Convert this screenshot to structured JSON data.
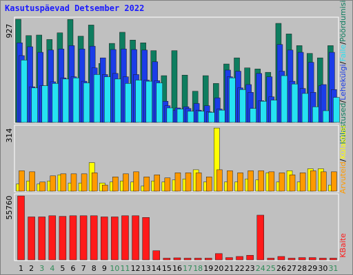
{
  "title": "Kasutuspäevad Detsember 2022",
  "colors": {
    "background": "#c0c0c0",
    "panel_border": "#ffffff",
    "visits": "#0e7d5f",
    "pages": "#1b3de8",
    "hits": "#26e2f2",
    "files": "#ffff00",
    "bandwidth_top": "#ff9a00",
    "kbytes": "#ff1a1a",
    "weekday_label": "#000000",
    "weekend_label": "#2e8b57"
  },
  "chart_data": [
    {
      "type": "bar",
      "name": "visits-pages-hits",
      "max_label": "927",
      "ylim": [
        0,
        927
      ],
      "legend": [
        "Külastused",
        "Lehekülgi",
        "Faile",
        "Pöördumisi"
      ],
      "series": [
        {
          "name": "Külastused",
          "values": [
            927,
            780,
            785,
            745,
            805,
            925,
            775,
            875,
            530,
            710,
            810,
            740,
            715,
            645,
            420,
            645,
            425,
            280,
            420,
            350,
            525,
            580,
            490,
            480,
            450,
            890,
            795,
            690,
            620,
            580,
            690
          ]
        },
        {
          "name": "Lehekülgi",
          "values": [
            715,
            680,
            630,
            650,
            660,
            690,
            660,
            685,
            580,
            655,
            660,
            655,
            650,
            545,
            190,
            110,
            140,
            170,
            150,
            220,
            470,
            460,
            340,
            440,
            410,
            700,
            650,
            630,
            540,
            330,
            630
          ]
        },
        {
          "name": "Faile",
          "values": [
            600,
            320,
            330,
            365,
            400,
            410,
            370,
            490,
            430,
            440,
            410,
            430,
            380,
            375,
            150,
            130,
            125,
            110,
            95,
            120,
            410,
            310,
            270,
            195,
            230,
            460,
            370,
            305,
            270,
            340,
            295
          ]
        },
        {
          "name": "Pöördumisi",
          "values": [
            560,
            310,
            330,
            350,
            390,
            400,
            355,
            430,
            410,
            390,
            350,
            380,
            370,
            355,
            130,
            120,
            100,
            100,
            90,
            110,
            400,
            295,
            125,
            190,
            200,
            420,
            345,
            260,
            140,
            105,
            225
          ]
        }
      ],
      "categories": [
        "1",
        "2",
        "3",
        "4",
        "5",
        "6",
        "7",
        "8",
        "9",
        "10",
        "11",
        "12",
        "13",
        "14",
        "15",
        "16",
        "17",
        "18",
        "19",
        "20",
        "21",
        "22",
        "23",
        "24",
        "25",
        "26",
        "27",
        "28",
        "29",
        "30",
        "31"
      ]
    },
    {
      "type": "bar",
      "name": "files-hits-detail",
      "max_label": "314",
      "ylim": [
        0,
        314
      ],
      "legend": [
        "Arvuteid",
        "Külastusi"
      ],
      "series": [
        {
          "name": "Külastusi",
          "values": [
            35,
            50,
            35,
            50,
            80,
            40,
            40,
            140,
            40,
            45,
            50,
            45,
            25,
            50,
            45,
            55,
            60,
            105,
            45,
            310,
            45,
            45,
            60,
            55,
            90,
            45,
            100,
            45,
            110,
            110,
            30
          ]
        },
        {
          "name": "Arvuteid",
          "values": [
            100,
            95,
            45,
            75,
            85,
            85,
            85,
            90,
            30,
            70,
            85,
            95,
            70,
            80,
            65,
            90,
            90,
            90,
            70,
            105,
            100,
            90,
            100,
            100,
            95,
            90,
            80,
            90,
            100,
            95,
            95
          ]
        }
      ]
    },
    {
      "type": "bar",
      "name": "kbytes",
      "max_label": "55760",
      "ylim": [
        0,
        55760
      ],
      "legend": [
        "KBaite"
      ],
      "series": [
        {
          "name": "KBaite",
          "values": [
            55760,
            37500,
            37500,
            38500,
            38000,
            38500,
            38500,
            38500,
            37500,
            37500,
            38500,
            38500,
            37000,
            8000,
            1500,
            1800,
            1500,
            1500,
            1500,
            5500,
            2000,
            3000,
            4000,
            39000,
            1500,
            3000,
            1500,
            2000,
            2000,
            1500,
            1500
          ]
        }
      ]
    }
  ],
  "weekend_days": [
    "3",
    "4",
    "10",
    "11",
    "17",
    "18",
    "24",
    "25",
    "31"
  ]
}
